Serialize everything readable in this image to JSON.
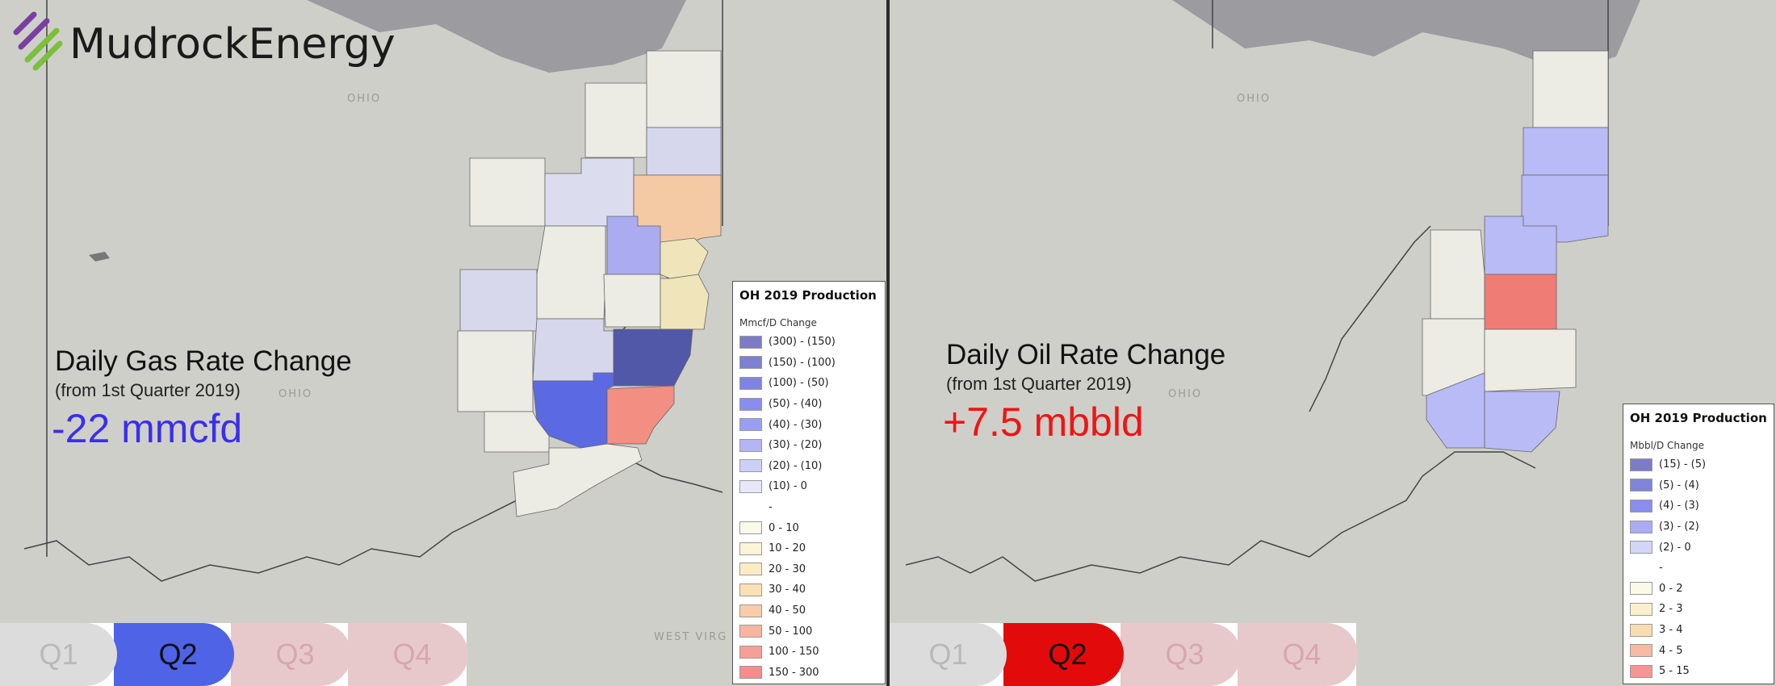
{
  "brand": {
    "logo_text": "MudrockEnergy",
    "logo_colors": [
      "#7a3fa0",
      "#7cbf3a"
    ]
  },
  "map_labels": {
    "ohio_state": "OHIO",
    "ohio_inner": "OHIO",
    "west_virginia": "WEST VIRG"
  },
  "gas": {
    "title": "Daily Gas Rate Change",
    "subtitle": "(from 1st Quarter 2019)",
    "value": "-22 mmcfd",
    "value_color": "#3a2ef0",
    "legend": {
      "title": "OH 2019 Production",
      "unit": "Mmcf/D Change",
      "items": [
        {
          "label": "(300) - (150)",
          "color": "#7c7cc6"
        },
        {
          "label": "(150) - (100)",
          "color": "#7e80d2"
        },
        {
          "label": "(100) - (50)",
          "color": "#7f84e0"
        },
        {
          "label": "(50) - (40)",
          "color": "#8a8cf0"
        },
        {
          "label": "(40) - (30)",
          "color": "#9a9ef2"
        },
        {
          "label": "(30) - (20)",
          "color": "#b3b5f4"
        },
        {
          "label": "(20) - (10)",
          "color": "#cdd0f6"
        },
        {
          "label": "(10) - 0",
          "color": "#e7e7fa"
        },
        {
          "label": "-",
          "color": ""
        },
        {
          "label": "0 - 10",
          "color": "#fbf9ea"
        },
        {
          "label": "10 - 20",
          "color": "#fbf4da"
        },
        {
          "label": "20 - 30",
          "color": "#fbecc6"
        },
        {
          "label": "30 - 40",
          "color": "#fbe0b6"
        },
        {
          "label": "40 - 50",
          "color": "#f9ccab"
        },
        {
          "label": "50 - 100",
          "color": "#f8b5a0"
        },
        {
          "label": "100 - 150",
          "color": "#f59f98"
        },
        {
          "label": "150 - 300",
          "color": "#f58d8d"
        }
      ]
    },
    "quarters": [
      {
        "label": "Q1",
        "active": false
      },
      {
        "label": "Q2",
        "active": true
      },
      {
        "label": "Q3",
        "active": false
      },
      {
        "label": "Q4",
        "active": false
      }
    ],
    "active_color": "#4f63e6"
  },
  "oil": {
    "title": "Daily Oil Rate Change",
    "subtitle": "(from 1st Quarter 2019)",
    "value": "+7.5 mbbld",
    "value_color": "#f01414",
    "legend": {
      "title": "OH 2019 Production",
      "unit": "Mbbl/D Change",
      "items": [
        {
          "label": "(15) - (5)",
          "color": "#7c7cc6"
        },
        {
          "label": "(5) - (4)",
          "color": "#8184d8"
        },
        {
          "label": "(4) - (3)",
          "color": "#8a8cf0"
        },
        {
          "label": "(3) - (2)",
          "color": "#a9acf4"
        },
        {
          "label": "(2) - 0",
          "color": "#d3d5f8"
        },
        {
          "label": "-",
          "color": ""
        },
        {
          "label": "0 - 2",
          "color": "#fbf9ea"
        },
        {
          "label": "2 - 3",
          "color": "#fbf0cc"
        },
        {
          "label": "3 - 4",
          "color": "#fadcb2"
        },
        {
          "label": "4 - 5",
          "color": "#f8b9a4"
        },
        {
          "label": "5 - 15",
          "color": "#f59696"
        }
      ]
    },
    "quarters": [
      {
        "label": "Q1",
        "active": false
      },
      {
        "label": "Q2",
        "active": true
      },
      {
        "label": "Q3",
        "active": false
      },
      {
        "label": "Q4",
        "active": false
      }
    ],
    "active_color": "#e20a0a"
  }
}
